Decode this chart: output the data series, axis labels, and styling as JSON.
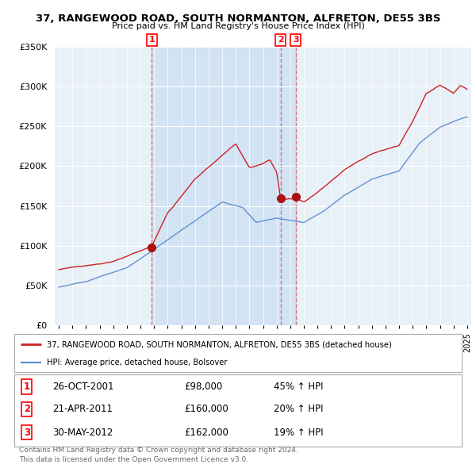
{
  "title": "37, RANGEWOOD ROAD, SOUTH NORMANTON, ALFRETON, DE55 3BS",
  "subtitle": "Price paid vs. HM Land Registry's House Price Index (HPI)",
  "legend_line1": "37, RANGEWOOD ROAD, SOUTH NORMANTON, ALFRETON, DE55 3BS (detached house)",
  "legend_line2": "HPI: Average price, detached house, Bolsover",
  "footer1": "Contains HM Land Registry data © Crown copyright and database right 2024.",
  "footer2": "This data is licensed under the Open Government Licence v3.0.",
  "sale_events": [
    {
      "num": 1,
      "date": "26-OCT-2001",
      "price": "£98,000",
      "change": "45% ↑ HPI",
      "year": 2001.82
    },
    {
      "num": 2,
      "date": "21-APR-2011",
      "price": "£160,000",
      "change": "20% ↑ HPI",
      "year": 2011.3
    },
    {
      "num": 3,
      "date": "30-MAY-2012",
      "price": "£162,000",
      "change": "19% ↑ HPI",
      "year": 2012.41
    }
  ],
  "sale_values": [
    98000,
    160000,
    162000
  ],
  "hpi_color": "#5588cc",
  "price_color": "#cc2222",
  "dashed_line_color": "#dd6666",
  "shading_color": "#ddeeff",
  "ylim": [
    0,
    350000
  ],
  "xlim_start": 1994.7,
  "xlim_end": 2025.3
}
